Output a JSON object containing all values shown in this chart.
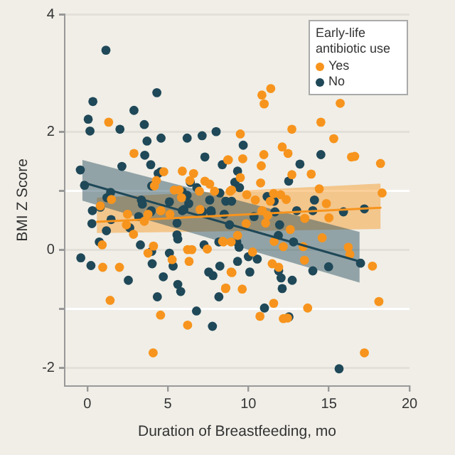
{
  "chart_data": {
    "type": "scatter",
    "xlabel": "Duration of Breastfeeding, mo",
    "ylabel": "BMI Z Score",
    "legend_title": "Early-life antibiotic use",
    "xlim": [
      -1.4,
      20
    ],
    "xticks": [
      0,
      5,
      10,
      15,
      20
    ],
    "ylim": [
      -2.3,
      4
    ],
    "yticks": [
      -2,
      {
        "value": -1,
        "label": null
      },
      0,
      {
        "value": 1,
        "label": null
      },
      2,
      4
    ],
    "grid": "y",
    "legend": "top right",
    "marker": "circle",
    "series": [
      {
        "name": "Yes",
        "color": "#f7941d",
        "x": [
          1.33,
          2.9,
          1.5,
          0.81,
          2.5,
          3.77,
          4.58,
          4.75,
          4.29,
          4.17,
          5.9,
          6.37,
          6.6,
          5.4,
          5.7,
          5.85,
          6.96,
          7.3,
          7.6,
          7.9,
          8.76,
          8.87,
          7.0,
          11.39,
          10.84,
          10.98,
          15.7,
          14.5,
          12.7,
          9.5,
          15.3,
          12.1,
          10.96,
          12.46,
          9.65,
          8.72,
          16.4,
          16.6,
          18.2,
          10.8,
          12.7,
          13.9,
          9.5,
          10.76,
          14.4,
          18.3,
          8.96,
          9.9,
          11.57,
          12.0,
          12.35,
          10.43,
          11.36,
          14.84,
          10.87,
          2.43,
          2.87,
          3.54,
          0.93,
          0.96,
          2.0,
          1.42,
          3.77,
          4.11,
          5.27,
          6.23,
          6.49,
          6.32,
          7.45,
          6.23,
          4.55,
          4.09,
          4.55,
          5.13,
          8.46,
          8.93,
          8.93,
          8.6,
          9.33,
          8.4,
          10.26,
          11.48,
          11.88,
          8.98,
          8.58,
          9.62,
          11.6,
          12.17,
          12.6,
          13.4,
          13.48,
          14.58,
          16.2,
          16.3,
          17.7,
          18.1,
          13.68,
          11.57,
          10.72,
          12.17,
          12.43,
          17.2,
          10.84,
          11.2,
          11.07,
          9.86,
          13.5,
          15.0
        ],
        "values": [
          2.17,
          1.64,
          0.86,
          0.75,
          0.61,
          0.61,
          0.67,
          1.33,
          1.18,
          1.09,
          1.34,
          1.18,
          1.3,
          1.02,
          1.02,
          0.89,
          1.0,
          1.17,
          1.12,
          1.0,
          1.53,
          1.0,
          0.69,
          2.74,
          2.63,
          2.48,
          2.49,
          2.17,
          2.05,
          1.97,
          1.89,
          1.75,
          1.62,
          1.64,
          1.55,
          1.53,
          1.58,
          1.59,
          1.47,
          1.43,
          1.28,
          1.29,
          1.23,
          1.14,
          1.04,
          0.97,
          1.02,
          0.94,
          0.96,
          0.94,
          0.86,
          0.85,
          0.83,
          0.79,
          0.67,
          0.43,
          0.27,
          0.49,
          0.09,
          -0.29,
          -0.29,
          -0.85,
          -0.05,
          0.07,
          -0.16,
          0.01,
          0.01,
          -0.19,
          0.02,
          -1.27,
          -1.1,
          -1.74,
          0.67,
          0.61,
          0.14,
          0.14,
          -0.37,
          -0.64,
          0.25,
          0.15,
          -0.03,
          -0.23,
          -0.29,
          -0.38,
          -0.65,
          -0.66,
          0.15,
          0.06,
          0.35,
          0.06,
          -0.17,
          0.21,
          0.05,
          -0.07,
          -0.27,
          -0.87,
          -0.98,
          -0.9,
          -1.12,
          -1.16,
          -1.15,
          -1.74,
          0.67,
          0.59,
          0.46,
          0.45,
          0.54,
          0.55
        ]
      },
      {
        "name": "No",
        "color": "#1f4858",
        "x": [
          1.16,
          0.35,
          0.06,
          0.17,
          2.03,
          2.9,
          3.54,
          4.32,
          3.71,
          4.58,
          3.57,
          3.94,
          2.15,
          -0.43,
          -0.17,
          4.4,
          4.56,
          4.0,
          1.45,
          1.22,
          0.32,
          3.36,
          5.1,
          6.2,
          7.13,
          8.0,
          7.3,
          8.38,
          6.4,
          6.8,
          5.9,
          6.2,
          6.3,
          7.16,
          7.6,
          7.7,
          8.23,
          8.6,
          8.96,
          6.0,
          3.97,
          3.42,
          9.68,
          13.2,
          14.5,
          9.33,
          9.16,
          9.45,
          12.5,
          11.16,
          11.6,
          14.1,
          13.0,
          14.0,
          15.9,
          17.2,
          10.35,
          0.29,
          0.81,
          1.48,
          1.19,
          0.75,
          -0.4,
          0.23,
          2.55,
          2.64,
          3.19,
          3.3,
          3.94,
          4.0,
          4.03,
          4.35,
          4.72,
          5.1,
          5.33,
          5.57,
          5.57,
          5.62,
          5.62,
          5.8,
          5.9,
          6.78,
          7.25,
          7.54,
          7.8,
          7.77,
          8.17,
          8.23,
          8.17,
          7.68,
          8.5,
          8.83,
          11.65,
          11.94,
          11.86,
          12.8,
          9.28,
          9.42,
          9.33,
          10.0,
          10.55,
          10.09,
          11.88,
          12.03,
          12.1,
          12.72,
          14.0,
          14.98,
          16.96,
          11.0,
          12.52,
          15.63
        ],
        "values": [
          3.39,
          2.52,
          2.22,
          2.02,
          2.05,
          2.37,
          2.13,
          2.67,
          1.85,
          1.9,
          1.61,
          1.45,
          1.42,
          1.36,
          1.1,
          1.3,
          1.33,
          1.09,
          0.98,
          0.89,
          0.67,
          0.85,
          0.82,
          1.9,
          1.94,
          2.01,
          1.58,
          1.45,
          1.15,
          1.06,
          0.99,
          0.93,
          0.79,
          0.65,
          0.85,
          0.64,
          0.97,
          0.83,
          0.83,
          0.69,
          0.67,
          0.78,
          1.78,
          1.46,
          1.62,
          1.34,
          1.15,
          1.06,
          1.17,
          0.91,
          0.83,
          0.85,
          0.67,
          0.67,
          0.65,
          0.7,
          0.57,
          0.45,
          0.73,
          0.52,
          0.33,
          0.14,
          -0.13,
          -0.26,
          -0.51,
          0.38,
          0.57,
          0.09,
          0.65,
          -0.02,
          -0.23,
          -0.79,
          -0.45,
          -0.05,
          -0.27,
          0.46,
          0.26,
          0.19,
          -0.58,
          -0.7,
          0.67,
          -1.03,
          0.09,
          -0.37,
          -0.43,
          -1.29,
          0.14,
          -0.27,
          -0.79,
          0.67,
          0.61,
          0.43,
          0.65,
          0.43,
          0.25,
          0.14,
          0.14,
          0.05,
          -0.19,
          -0.11,
          -0.15,
          -0.37,
          -0.35,
          -0.47,
          -0.65,
          -0.51,
          -0.35,
          -0.28,
          -0.22,
          -0.98,
          -1.13,
          -2.01
        ]
      },
      {
        "type": "line",
        "marker": "none",
        "color": "#f7941d",
        "x": [
          0.6,
          18.2
        ],
        "values": [
          0.48,
          0.72
        ],
        "lower": [
          0.29,
          0.36
        ],
        "upper": [
          0.89,
          1.13
        ]
      },
      {
        "type": "line",
        "marker": "none",
        "color": "#1f4858",
        "x": [
          -0.3,
          16.9
        ],
        "values": [
          1.15,
          -0.19
        ],
        "lower": [
          0.84,
          -0.55
        ],
        "upper": [
          1.53,
          0.31
        ]
      }
    ]
  }
}
